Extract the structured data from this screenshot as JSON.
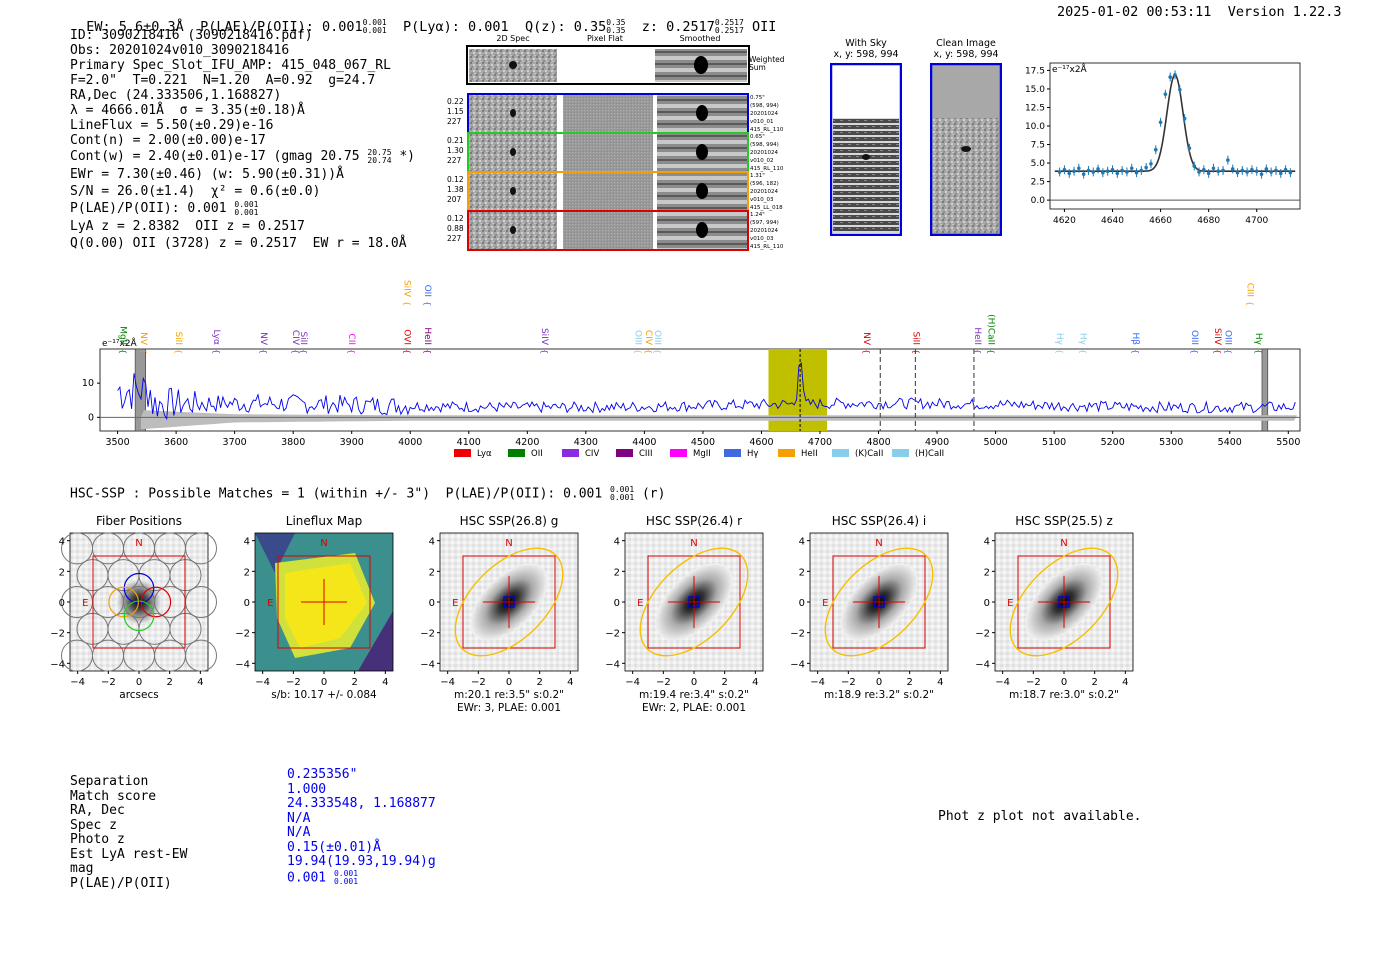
{
  "header": {
    "ew": "EW: 5.6±0.3Å",
    "plae": "P(LAE)/P(OII): 0.001",
    "plae_hi": "0.001",
    "plae_lo": "0.001",
    "plya": "P(Lyα): 0.001",
    "qz": "Q(z): 0.35",
    "qz_hi": "0.35",
    "qz_lo": "0.35",
    "z": "z: 0.2517",
    "z_hi": "0.2517",
    "z_lo": "0.2517",
    "z_line": "OII",
    "timestamp": "2025-01-02 00:53:11",
    "version": "Version 1.22.3"
  },
  "info": {
    "id": "ID: 3090218416 (3090218416.pdf)",
    "obs": "Obs: 20201024v010_3090218416",
    "primary": "Primary Spec_Slot_IFU_AMP: 415_048_067_RL",
    "f": "F=2.0\"  T=0.221  N=1.20  A=0.92  g=24.7",
    "radec": "RA,Dec (24.333506,1.168827)",
    "lambda": "λ = 4666.01Å  σ = 3.35(±0.18)Å",
    "lineflux": "LineFlux = 5.50(±0.29)e-16",
    "contn": "Cont(n) = 2.00(±0.00)e-17",
    "contw": "Cont(w) = 2.40(±0.01)e-17 (gmag 20.75",
    "contw_hi": "20.75",
    "contw_lo": "20.74",
    "contw_end": " *)",
    "ewr": "EWr = 7.30(±0.46) (w: 5.90(±0.31))Å",
    "sn": "S/N = 26.0(±1.4)  χ² = 0.6(±0.0)",
    "plae": "P(LAE)/P(OII): 0.001",
    "plae_hi": "0.001",
    "plae_lo": "0.001",
    "lya": "LyA z = 2.8382  OII z = 0.2517",
    "q": "Q(0.00) OII (3728) z = 0.2517  EW r = 18.0Å"
  },
  "cutouts": {
    "col_labels": [
      "2D Spec",
      "Pixel Flat",
      "Smoothed"
    ],
    "weighted_sum": "Weighted Sum",
    "rows": [
      {
        "left": [
          "0.22",
          "1.15",
          "227"
        ],
        "right": [
          "0.75\"",
          "(598, 994)",
          "20201024",
          "v010_01",
          "415_RL_110"
        ],
        "color": "#0000dd"
      },
      {
        "left": [
          "0.21",
          "1.30",
          "227"
        ],
        "right": [
          "0.65\"",
          "(598, 994)",
          "20201024",
          "v010_02",
          "415_RL_110"
        ],
        "color": "#22cc22"
      },
      {
        "left": [
          "0.12",
          "1.38",
          "207"
        ],
        "right": [
          "1.31\"",
          "(596, 182)",
          "20201024",
          "v010_03",
          "415_LL_018"
        ],
        "color": "#f5a000"
      },
      {
        "left": [
          "0.12",
          "0.88",
          "227"
        ],
        "right": [
          "1.24\"",
          "(597, 994)",
          "20201024",
          "v010_03",
          "415_RL_110"
        ],
        "color": "#dd0000"
      }
    ]
  },
  "sky": {
    "with_sky": "With Sky",
    "with_sky_xy": "x, y: 598, 994",
    "clean": "Clean Image",
    "clean_xy": "x, y: 598, 994"
  },
  "colors": {
    "blue": "#0000ee",
    "red": "#dd0000",
    "olive": "#c0c000",
    "gray": "#b8b8b8"
  },
  "chart_data": [
    {
      "type": "scatter",
      "name": "zoom-line-fit",
      "unit_label": "e⁻¹⁷x2Å",
      "xlim": [
        4614,
        4718
      ],
      "ylim": [
        -1.2,
        18.5
      ],
      "xticks": [
        4620,
        4640,
        4660,
        4680,
        4700
      ],
      "yticks": [
        0.0,
        2.5,
        5.0,
        7.5,
        10.0,
        12.5,
        15.0,
        17.5
      ],
      "x": [
        4618,
        4620,
        4622,
        4624,
        4626,
        4628,
        4630,
        4632,
        4634,
        4636,
        4638,
        4640,
        4642,
        4644,
        4646,
        4648,
        4650,
        4652,
        4654,
        4656,
        4658,
        4660,
        4662,
        4664,
        4666,
        4668,
        4670,
        4672,
        4674,
        4676,
        4678,
        4680,
        4682,
        4684,
        4686,
        4688,
        4690,
        4692,
        4694,
        4696,
        4698,
        4700,
        4702,
        4704,
        4706,
        4708,
        4710,
        4712,
        4714
      ],
      "y": [
        3.8,
        4.1,
        3.6,
        3.9,
        4.3,
        3.5,
        4.0,
        3.8,
        4.2,
        3.7,
        3.9,
        4.1,
        3.6,
        4.0,
        3.8,
        4.3,
        3.7,
        4.0,
        4.4,
        4.9,
        6.8,
        10.5,
        14.3,
        16.6,
        16.9,
        14.9,
        11.0,
        7.0,
        4.6,
        3.8,
        4.1,
        3.6,
        4.3,
        3.9,
        4.0,
        5.4,
        4.2,
        3.7,
        4.0,
        3.8,
        4.1,
        3.9,
        3.5,
        4.2,
        3.8,
        4.0,
        3.6,
        4.1,
        3.7
      ],
      "fit": {
        "amp": 13.0,
        "mu": 4666.0,
        "sigma": 3.35,
        "base": 3.9
      }
    },
    {
      "type": "line",
      "name": "full-spectrum",
      "unit_label": "e⁻¹⁷x2Å",
      "xlim": [
        3470,
        5520
      ],
      "ylim": [
        -4,
        20
      ],
      "xticks": [
        3500,
        3600,
        3700,
        3800,
        3900,
        4000,
        4100,
        4200,
        4300,
        4400,
        4500,
        4600,
        4700,
        4800,
        4900,
        5000,
        5100,
        5200,
        5300,
        5400,
        5500
      ],
      "yticks": [
        0,
        10
      ],
      "highlight_region": [
        4612,
        4712
      ],
      "line_center": 4666,
      "dashed_lines": [
        4803,
        4863,
        4963
      ],
      "gray_bands": [
        [
          3530,
          3548
        ],
        [
          5455,
          5465
        ]
      ],
      "lines": [
        {
          "label": "MgII",
          "x": 3500,
          "color": "#008000"
        },
        {
          "label": "NV",
          "x": 3535,
          "color": "#f5a000"
        },
        {
          "label": "SiII",
          "x": 3595,
          "color": "#f5a000"
        },
        {
          "label": "Lyα",
          "x": 3660,
          "color": "#7b2fbe"
        },
        {
          "label": "NV",
          "x": 3740,
          "color": "#7b2fbe"
        },
        {
          "label": "CIV",
          "x": 3795,
          "color": "#7b2fbe"
        },
        {
          "label": "SiII",
          "x": 3808,
          "color": "#7b2fbe"
        },
        {
          "label": "CII",
          "x": 3890,
          "color": "#ff00ff"
        },
        {
          "label": "OVI",
          "x": 3985,
          "color": "#dd0000"
        },
        {
          "label": "SiIV",
          "x": 3985,
          "color": "#f5a000",
          "high": true
        },
        {
          "label": "HeII",
          "x": 4020,
          "color": "#800080"
        },
        {
          "label": "OII",
          "x": 4020,
          "color": "#3366ff",
          "high": true
        },
        {
          "label": "SiIV",
          "x": 4220,
          "color": "#7b2fbe"
        },
        {
          "label": "OIII",
          "x": 4380,
          "color": "#87ceeb"
        },
        {
          "label": "CIV",
          "x": 4398,
          "color": "#f5a000"
        },
        {
          "label": "OIII",
          "x": 4413,
          "color": "#87ceeb"
        },
        {
          "label": "NV",
          "x": 4770,
          "color": "#dd0000"
        },
        {
          "label": "SiII",
          "x": 4855,
          "color": "#dd0000"
        },
        {
          "label": "HeII",
          "x": 4960,
          "color": "#7b2fbe"
        },
        {
          "label": "(H)CaII",
          "x": 4983,
          "color": "#008000"
        },
        {
          "label": "Hγ",
          "x": 5100,
          "color": "#87ceeb"
        },
        {
          "label": "Hγ",
          "x": 5140,
          "color": "#87ceeb"
        },
        {
          "label": "Hβ",
          "x": 5230,
          "color": "#3366ff"
        },
        {
          "label": "OIII",
          "x": 5330,
          "color": "#3366ff"
        },
        {
          "label": "SiIV",
          "x": 5370,
          "color": "#dd0000"
        },
        {
          "label": "OIII",
          "x": 5388,
          "color": "#3366ff"
        },
        {
          "label": "CIII",
          "x": 5425,
          "color": "#f5a000",
          "high": true
        },
        {
          "label": "Hγ",
          "x": 5440,
          "color": "#008000"
        }
      ],
      "legend": [
        {
          "label": "Lyα",
          "color": "#ee0000"
        },
        {
          "label": "OII",
          "color": "#008000"
        },
        {
          "label": "CIV",
          "color": "#8a2be2"
        },
        {
          "label": "CIII",
          "color": "#800080"
        },
        {
          "label": "MgII",
          "color": "#ff00ff"
        },
        {
          "label": "Hγ",
          "color": "#4169e1"
        },
        {
          "label": "HeII",
          "color": "#f5a000"
        },
        {
          "label": "(K)CaII",
          "color": "#87ceeb"
        },
        {
          "label": "(H)CaII",
          "color": "#87ceeb"
        }
      ]
    },
    {
      "type": "heatmap",
      "name": "imaging-panels",
      "xlim": [
        -4.5,
        4.5
      ],
      "ylim": [
        -4.5,
        4.5
      ],
      "xticks": [
        -4,
        -2,
        0,
        2,
        4
      ],
      "yticks": [
        -4,
        -2,
        0,
        2,
        4
      ],
      "panels": [
        {
          "title": "Fiber Positions",
          "xlabel": "arcsecs",
          "xlabel2": ""
        },
        {
          "title": "Lineflux Map",
          "xlabel": "s/b: 10.17 +/- 0.084",
          "xlabel2": ""
        },
        {
          "title": "HSC SSP(26.8) g",
          "xlabel": "m:20.1  re:3.5\"  s:0.2\"",
          "xlabel2": "EWr: 3, PLAE: 0.001"
        },
        {
          "title": "HSC SSP(26.4) r",
          "xlabel": "m:19.4  re:3.4\"  s:0.2\"",
          "xlabel2": "EWr: 2, PLAE: 0.001"
        },
        {
          "title": "HSC SSP(26.4) i",
          "xlabel": "m:18.9  re:3.2\"  s:0.2\"",
          "xlabel2": ""
        },
        {
          "title": "HSC SSP(25.5) z",
          "xlabel": "m:18.7  re:3.0\"  s:0.2\"",
          "xlabel2": ""
        }
      ]
    }
  ],
  "hsc": {
    "summary": "HSC-SSP : Possible Matches = 1 (within +/- 3\")  P(LAE)/P(OII): 0.001",
    "summary_hi": "0.001",
    "summary_lo": "0.001",
    "summary_end": "(r)",
    "compass_n": "N",
    "compass_e": "E"
  },
  "match": {
    "labels": [
      "Separation",
      "Match score",
      "RA, Dec",
      "Spec z",
      "Photo z",
      "Est LyA rest-EW",
      "mag",
      "P(LAE)/P(OII)"
    ],
    "values": [
      "0.235356\"",
      "1.000",
      "24.333548, 1.168877",
      "N/A",
      "N/A",
      "0.15(±0.01)Å",
      "19.94(19.93,19.94)g",
      "0.001"
    ],
    "plae_hi": "0.001",
    "plae_lo": "0.001",
    "photz_msg": "Phot z plot not available."
  }
}
